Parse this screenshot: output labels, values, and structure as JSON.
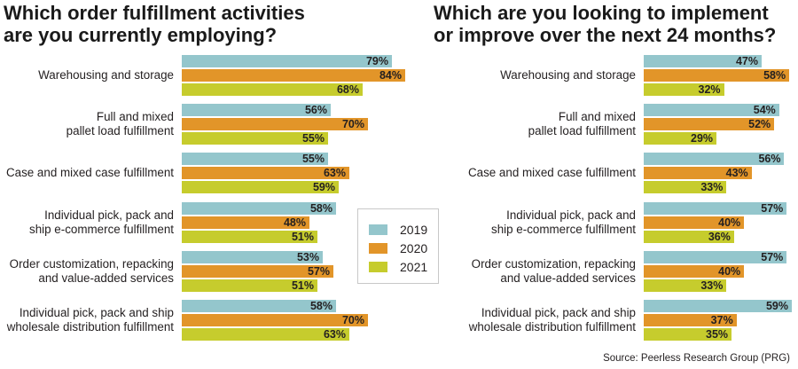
{
  "chart_data": [
    {
      "type": "bar",
      "orientation": "horizontal",
      "title": "Which order fulfillment activities are you currently employing?",
      "title_lines": [
        "Which order fulfillment activities",
        "are you currently employing?"
      ],
      "categories": [
        [
          "Warehousing and storage"
        ],
        [
          "Full and mixed",
          "pallet load fulfillment"
        ],
        [
          "Case and mixed case fulfillment"
        ],
        [
          "Individual pick, pack and",
          "ship e-commerce fulfillment"
        ],
        [
          "Order customization, repacking",
          "and value-added services"
        ],
        [
          "Individual pick, pack and ship",
          "wholesale distribution fulfillment"
        ]
      ],
      "series": [
        {
          "name": "2019",
          "values": [
            79,
            56,
            55,
            58,
            53,
            58
          ]
        },
        {
          "name": "2020",
          "values": [
            84,
            70,
            63,
            48,
            57,
            70
          ]
        },
        {
          "name": "2021",
          "values": [
            68,
            55,
            59,
            51,
            51,
            63
          ]
        }
      ],
      "value_suffix": "%",
      "xlabel": "",
      "ylabel": "",
      "grid": false
    },
    {
      "type": "bar",
      "orientation": "horizontal",
      "title": "Which are you looking to implement or improve over the next 24 months?",
      "title_lines": [
        "Which are you looking to implement",
        "or improve over the next 24 months?"
      ],
      "categories": [
        [
          "Warehousing and storage"
        ],
        [
          "Full and mixed",
          "pallet load fulfillment"
        ],
        [
          "Case and mixed case fulfillment"
        ],
        [
          "Individual pick, pack and",
          "ship e-commerce fulfillment"
        ],
        [
          "Order customization, repacking",
          "and value-added services"
        ],
        [
          "Individual pick, pack and ship",
          "wholesale distribution fulfillment"
        ]
      ],
      "series": [
        {
          "name": "2019",
          "values": [
            47,
            54,
            56,
            57,
            57,
            59
          ]
        },
        {
          "name": "2020",
          "values": [
            58,
            52,
            43,
            40,
            40,
            37
          ]
        },
        {
          "name": "2021",
          "values": [
            32,
            29,
            33,
            36,
            33,
            35
          ]
        }
      ],
      "value_suffix": "%",
      "xlabel": "",
      "ylabel": "",
      "grid": false
    }
  ],
  "legend": {
    "placement": "center",
    "items": [
      {
        "label": "2019",
        "color": "#94c6cc"
      },
      {
        "label": "2020",
        "color": "#e29529"
      },
      {
        "label": "2021",
        "color": "#c6cc2d"
      }
    ]
  },
  "colors": {
    "2019": "#94c6cc",
    "2020": "#e29529",
    "2021": "#c6cc2d",
    "text": "#231f20"
  },
  "source": "Source: Peerless Research Group (PRG)"
}
